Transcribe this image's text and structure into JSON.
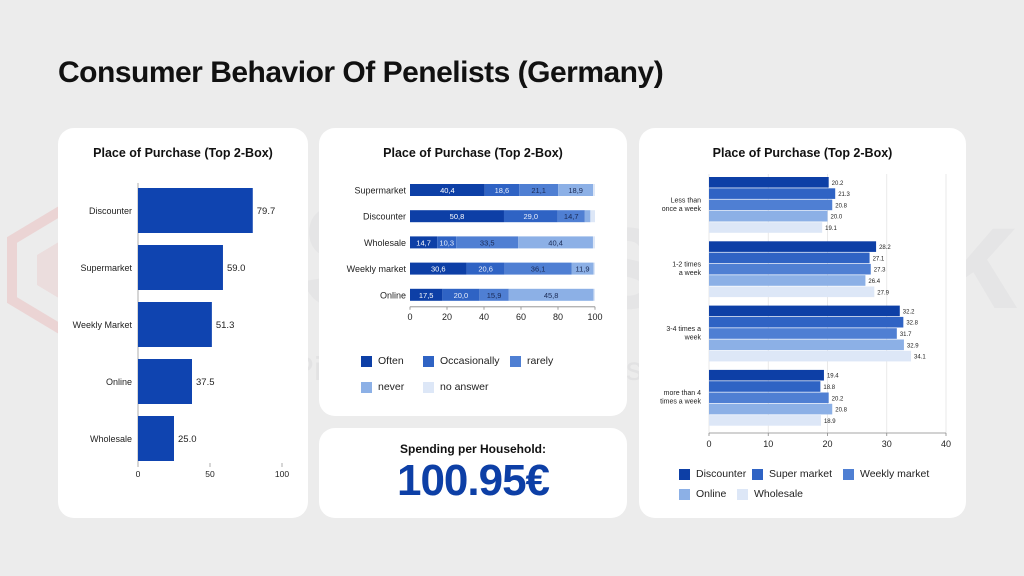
{
  "page_title": "Consumer Behavior Of Penelists (Germany)",
  "watermark": {
    "brand": "Statswork",
    "tagline": "Pioneer Statistical Consulting since 2001"
  },
  "colors": {
    "dark": "#0d3fa6",
    "medium": "#2f63c4",
    "light": "#4f7fd3",
    "lighter": "#8cb0e6",
    "lightest": "#dde7f7",
    "single_bar": "#0f44b0"
  },
  "chart_data": [
    {
      "type": "bar",
      "orientation": "horizontal",
      "title": "Place of Purchase (Top 2-Box)",
      "categories": [
        "Discounter",
        "Supermarket",
        "Weekly Market",
        "Online",
        "Wholesale"
      ],
      "values": [
        79.7,
        59.0,
        51.3,
        37.5,
        25.0
      ],
      "value_labels": [
        "79.7",
        "59.0",
        "51.3",
        "37.5",
        "25.0"
      ],
      "xlim": [
        0,
        100
      ],
      "xticks": [
        "0",
        "50",
        "100"
      ]
    },
    {
      "type": "bar",
      "orientation": "horizontal",
      "stacked": true,
      "title": "Place of Purchase (Top 2-Box)",
      "categories": [
        "Supermarket",
        "Discounter",
        "Wholesale",
        "Weekly market",
        "Online"
      ],
      "series": [
        {
          "name": "Often",
          "values": [
            40.4,
            50.8,
            14.7,
            30.6,
            17.5
          ],
          "labels": [
            "40,4",
            "50,8",
            "14,7",
            "30,6",
            "17,5"
          ]
        },
        {
          "name": "Occasionally",
          "values": [
            18.6,
            29.0,
            10.3,
            20.6,
            20.0
          ],
          "labels": [
            "18,6",
            "29,0",
            "10,3",
            "20,6",
            "20,0"
          ]
        },
        {
          "name": "rarely",
          "values": [
            21.1,
            14.7,
            33.5,
            36.1,
            15.9
          ],
          "labels": [
            "21,1",
            "14,7",
            "33,5",
            "36,1",
            "15,9"
          ]
        },
        {
          "name": "never",
          "values": [
            18.9,
            3.0,
            40.4,
            11.9,
            45.8
          ],
          "labels": [
            "18,9",
            "",
            "40,4",
            "11,9",
            "45,8"
          ]
        },
        {
          "name": "no answer",
          "values": [
            1.0,
            2.5,
            1.1,
            0.8,
            0.8
          ],
          "labels": [
            "",
            "",
            "",
            "",
            ""
          ]
        }
      ],
      "xlim": [
        0,
        100
      ],
      "xticks": [
        "0",
        "20",
        "40",
        "60",
        "80",
        "100"
      ],
      "legend": "bottom"
    },
    {
      "type": "bar",
      "orientation": "horizontal",
      "grouped": true,
      "title": "Place of Purchase (Top 2-Box)",
      "categories": [
        [
          "Less than",
          "once a week"
        ],
        [
          "1-2 times",
          "a week"
        ],
        [
          "3-4 times a",
          "week"
        ],
        [
          "more than 4",
          "times a week"
        ]
      ],
      "series": [
        {
          "name": "Discounter",
          "values": [
            20.2,
            28.2,
            32.2,
            19.4
          ],
          "labels": [
            "20.2",
            "28.2",
            "32.2",
            "19.4"
          ]
        },
        {
          "name": "Super market",
          "values": [
            21.3,
            27.1,
            32.8,
            18.8
          ],
          "labels": [
            "21.3",
            "27.1",
            "32.8",
            "18.8"
          ]
        },
        {
          "name": "Weekly market",
          "values": [
            20.8,
            27.3,
            31.7,
            20.2
          ],
          "labels": [
            "20.8",
            "27.3",
            "31.7",
            "20.2"
          ]
        },
        {
          "name": "Online",
          "values": [
            20.0,
            26.4,
            32.9,
            20.8
          ],
          "labels": [
            "20.0",
            "26.4",
            "32.9",
            "20.8"
          ]
        },
        {
          "name": "Wholesale",
          "values": [
            19.1,
            27.9,
            34.1,
            18.9
          ],
          "labels": [
            "19.1",
            "27.9",
            "34.1",
            "18.9"
          ]
        }
      ],
      "xlim": [
        0,
        40
      ],
      "xticks": [
        "0",
        "10",
        "20",
        "30",
        "40"
      ],
      "legend": "bottom"
    }
  ],
  "spending": {
    "label": "Spending per Household:",
    "value": "100.95€"
  }
}
